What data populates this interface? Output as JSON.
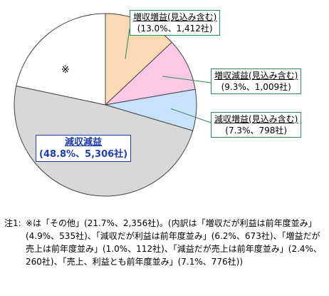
{
  "chart_data": {
    "type": "pie",
    "start": "top, clockwise",
    "slices": [
      {
        "key": "zoushu_zoueki",
        "name": "増収増益(見込み含む)",
        "label": "(13.0%、1,412社)",
        "value": 13.0,
        "count": 1412,
        "color": "#fcd9b5"
      },
      {
        "key": "zoushu_geneki",
        "name": "増収減益(見込み含む)",
        "label": "(9.3%、1,009社)",
        "value": 9.3,
        "count": 1009,
        "color": "#fbc8e8"
      },
      {
        "key": "genshu_zoueki",
        "name": "減収増益(見込み含む)",
        "label": "(7.3%、798社)",
        "value": 7.3,
        "count": 798,
        "color": "#c9e2fb"
      },
      {
        "key": "genshu_geneki",
        "name": "減収減益",
        "label": "(48.8%、5,306社)",
        "value": 48.8,
        "count": 5306,
        "color": "#d8d8d8"
      },
      {
        "key": "other",
        "name": "※",
        "label": "",
        "value": 21.7,
        "count": 2356,
        "color": "#ffffff"
      }
    ],
    "leader_color": "#2e8b57"
  },
  "note": {
    "label": "注1:",
    "text": "※は「その他」(21.7%、2,356社)。(内訳は「増収だが利益は前年度並み」(4.9%、535社)、「減収だが利益は前年度並み」(6.2%、673社)、「増益だが売上は前年度並み」(1.0%、112社)、「減益だが売上は前年度並み」(2.4%、260社)、「売上、利益とも前年度並み」(7.1%、776社))"
  }
}
